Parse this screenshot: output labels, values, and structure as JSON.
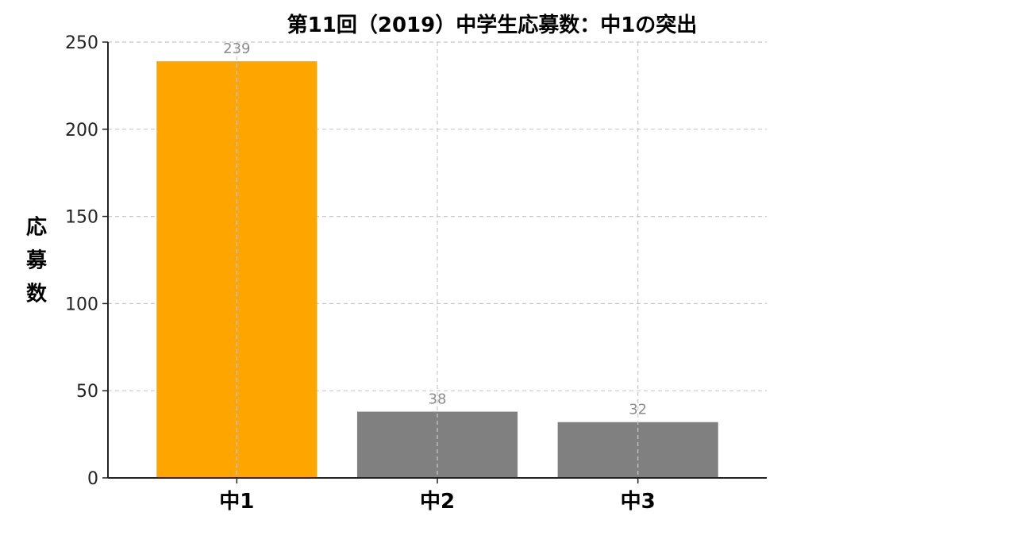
{
  "chart_data": {
    "type": "bar",
    "title": "第11回（2019）中学生応募数：中1の突出",
    "xlabel": "",
    "ylabel": "応募数",
    "categories": [
      "中1",
      "中2",
      "中3"
    ],
    "values": [
      239,
      38,
      32
    ],
    "data_labels": [
      "239",
      "38",
      "32"
    ],
    "bar_colors": [
      "#FFA500",
      "#808080",
      "#808080"
    ],
    "ylim": [
      0,
      250
    ],
    "yticks": [
      0,
      50,
      100,
      150,
      200,
      250
    ],
    "grid": true,
    "legend": "none"
  }
}
